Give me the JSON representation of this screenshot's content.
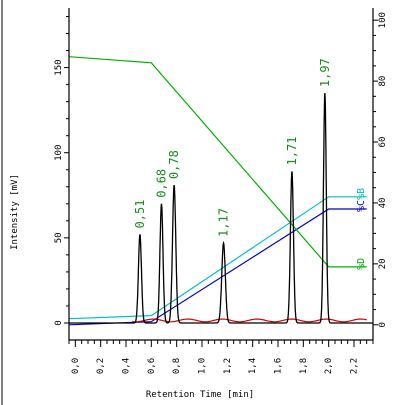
{
  "chart_data": {
    "type": "line",
    "xlabel": "Retention Time [min]",
    "ylabel": "Intensity [mV]",
    "xlim": [
      -0.05,
      2.35
    ],
    "ylim": [
      -10,
      185
    ],
    "y2lim": [
      -5,
      104
    ],
    "x_ticks": [
      "0,0",
      "0,2",
      "0,4",
      "0,6",
      "0,8",
      "1,0",
      "1,2",
      "1,4",
      "1,6",
      "1,8",
      "2,0",
      "2,2"
    ],
    "x_tick_values": [
      0.0,
      0.2,
      0.4,
      0.6,
      0.8,
      1.0,
      1.2,
      1.4,
      1.6,
      1.8,
      2.0,
      2.2
    ],
    "y_ticks": [
      "0",
      "50",
      "100",
      "150"
    ],
    "y_tick_values": [
      0,
      50,
      100,
      150
    ],
    "y2_ticks": [
      "0",
      "20",
      "40",
      "60",
      "80",
      "100"
    ],
    "y2_tick_values": [
      0,
      20,
      40,
      60,
      80,
      100
    ],
    "peaks": [
      {
        "label": "0,51",
        "rt": 0.51,
        "height": 52,
        "width": 0.012
      },
      {
        "label": "0,68",
        "rt": 0.68,
        "height": 70,
        "width": 0.012
      },
      {
        "label": "0,78",
        "rt": 0.78,
        "height": 81,
        "width": 0.013
      },
      {
        "label": "1,17",
        "rt": 1.17,
        "height": 47,
        "width": 0.014
      },
      {
        "label": "1,71",
        "rt": 1.71,
        "height": 89,
        "width": 0.012
      },
      {
        "label": "1,97",
        "rt": 1.97,
        "height": 135,
        "width": 0.011
      }
    ],
    "series": [
      {
        "name": "%B",
        "axis": "right",
        "color": "#00c0c0",
        "x": [
          -0.05,
          0.6,
          2.0,
          2.3
        ],
        "y": [
          2,
          3,
          42,
          42
        ]
      },
      {
        "name": "%C",
        "axis": "right",
        "color": "#0000cc",
        "x": [
          -0.05,
          0.6,
          2.0,
          2.3
        ],
        "y": [
          0,
          1,
          38,
          38
        ]
      },
      {
        "name": "%D",
        "axis": "right",
        "color": "#00b000",
        "x": [
          -0.05,
          0.6,
          2.0,
          2.3
        ],
        "y": [
          88,
          86,
          19,
          19
        ]
      }
    ],
    "baseline_color": "#d00000",
    "peak_color": "#000000",
    "peak_label_color": "#1a8c1a",
    "grid": false
  }
}
